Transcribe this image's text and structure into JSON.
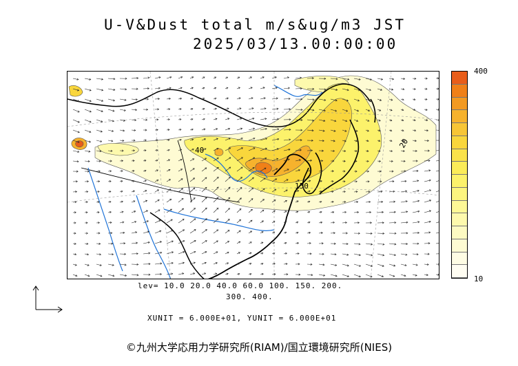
{
  "header": {
    "title": "U-V&Dust total m/s&ug/m3 JST",
    "datetime": "2025/03/13.00:00:00"
  },
  "colorbar": {
    "max_label": "400",
    "min_label": "10",
    "colors": [
      "#e85d1a",
      "#f08018",
      "#f39a22",
      "#f6b22d",
      "#f7c536",
      "#f9d63c",
      "#fae24a",
      "#fbec58",
      "#fcf26b",
      "#fcf57f",
      "#fdf896",
      "#fdf9ad",
      "#fdfac2",
      "#fefbd3",
      "#fefce4",
      "#fffdf2"
    ]
  },
  "levels": {
    "line1": "lev= 10.0 20.0 40.0 60.0 100. 150. 200.",
    "line2": "300. 400."
  },
  "units": "XUNIT = 6.000E+01, YUNIT = 6.000E+01",
  "contour_labels": {
    "label_40": "40",
    "label_150": "150",
    "label_20": "20"
  },
  "copyright": "©九州大学応用力学研究所(RIAM)/国立環境研究所(NIES)",
  "map_icons": [
    "coastline",
    "river",
    "border",
    "wind-vector-arrow",
    "dust-concentration-contour"
  ]
}
